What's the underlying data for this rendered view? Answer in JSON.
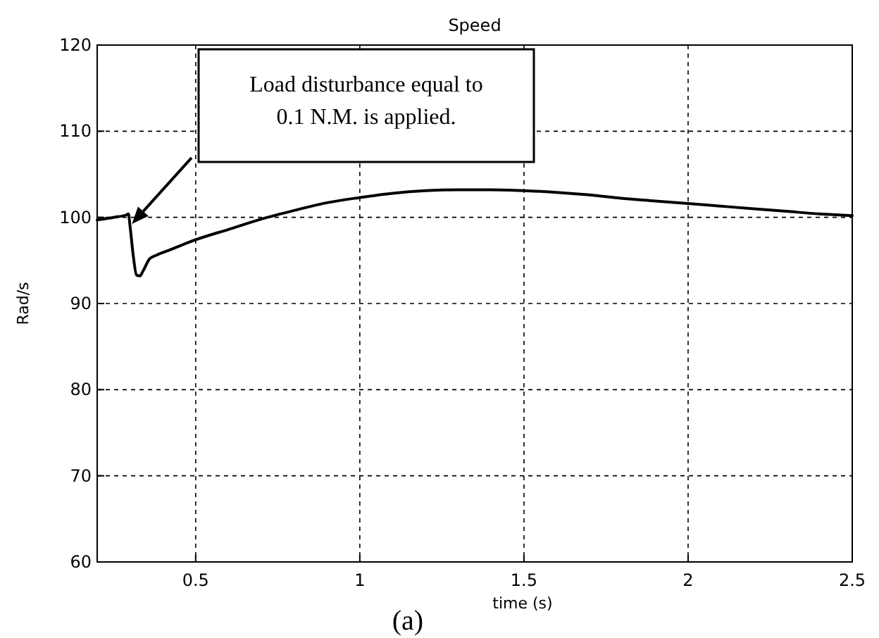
{
  "chart_data": {
    "type": "line",
    "title": "Speed",
    "xlabel": "time (s)",
    "ylabel": "Rad/s",
    "xlim": [
      0.2,
      2.5
    ],
    "xticks": [
      0.5,
      1,
      1.5,
      2,
      2.5
    ],
    "ylim": [
      60,
      120
    ],
    "yticks": [
      60,
      70,
      80,
      90,
      100,
      110,
      120
    ],
    "grid": true,
    "series": [
      {
        "color": "#000000",
        "x": [
          0.2,
          0.25,
          0.29,
          0.295,
          0.3,
          0.31,
          0.32,
          0.33,
          0.34,
          0.36,
          0.38,
          0.42,
          0.5,
          0.6,
          0.7,
          0.8,
          0.9,
          1.0,
          1.1,
          1.2,
          1.3,
          1.4,
          1.5,
          1.6,
          1.7,
          1.8,
          1.9,
          2.0,
          2.1,
          2.2,
          2.3,
          2.4,
          2.5
        ],
        "values": [
          99.7,
          100,
          100.3,
          100.4,
          99,
          95.5,
          93.3,
          93.2,
          93.8,
          95.2,
          95.6,
          96.2,
          97.4,
          98.6,
          99.8,
          100.8,
          101.7,
          102.3,
          102.8,
          103.1,
          103.2,
          103.2,
          103.1,
          102.9,
          102.6,
          102.2,
          101.9,
          101.6,
          101.3,
          101,
          100.7,
          100.4,
          100.2
        ]
      }
    ],
    "annotations": [
      "Load disturbance equal to 0.1 N.M. is applied.",
      "(a)"
    ]
  }
}
